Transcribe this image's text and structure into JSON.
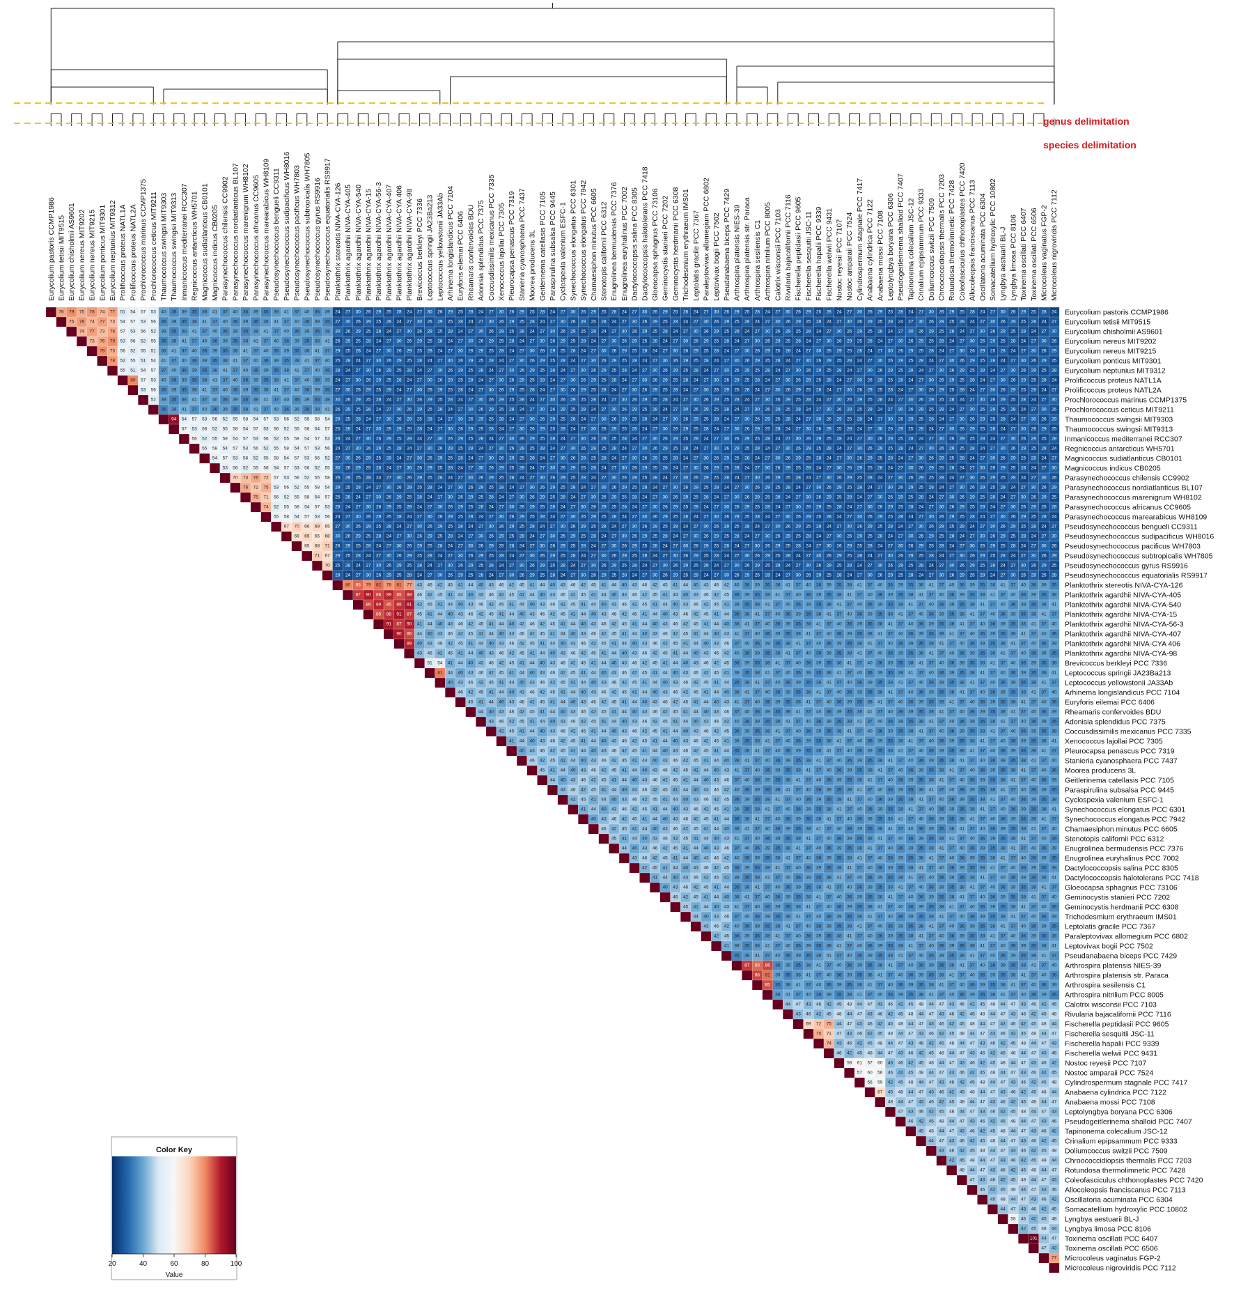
{
  "chart_data": {
    "type": "heatmap",
    "description_scope": "upper-triangular pairwise similarity matrix with hierarchical clustering dendrogram",
    "legend": {
      "title": "Color Key",
      "xlabel": "Value",
      "ticks": [
        20,
        40,
        60,
        80,
        100
      ],
      "range": [
        20,
        100
      ],
      "palette": [
        "#08306b",
        "#2166ac",
        "#6aa6d1",
        "#dbeaf5",
        "#f7f7f7",
        "#fcd4bd",
        "#ef8a62",
        "#b2182b",
        "#67001f"
      ]
    },
    "delimitations": [
      {
        "label": "genus delimitation",
        "color": "#f5b800"
      },
      {
        "label": "species delimitation",
        "color": "#f5b800"
      }
    ],
    "taxa": [
      "Eurycolium pastoris CCMP1986",
      "Eurycolium tetisii MIT9515",
      "Eurycolium chisholmii AS9601",
      "Eurycolium nereus MIT9202",
      "Eurycolium nereus MIT9215",
      "Eurycolium ponticus MIT9301",
      "Eurycolium neptunius MIT9312",
      "Prolificoccus proteus NATL1A",
      "Prolificoccus proteus NATL2A",
      "Prochlorococcus marinus CCMP1375",
      "Prochlorococcus ceticus MIT9211",
      "Thaumococcus swingsii MIT9303",
      "Thaumococcus swingsii MIT9313",
      "Inmanicoccus mediterranei RCC307",
      "Regnicoccus antarcticus WH5701",
      "Magnicoccus sudiatlanticus CB0101",
      "Magnicoccus indicus CB0205",
      "Parasynechococcus chilensis CC9902",
      "Parasynechococcus nordiatlanticus BL107",
      "Parasynechococcus marenigrum WH8102",
      "Parasynechococcus africanus CC9605",
      "Parasynechococcus marearabicus WH8109",
      "Pseudosynechococcus bengueli CC9311",
      "Pseudosynechococcus sudipacificus WH8016",
      "Pseudosynechococcus pacificus WH7803",
      "Pseudosynechococcus subtropicalis WH7805",
      "Pseudosynechococcus gyrus RS9916",
      "Pseudosynechococcus equatorialis RS9917",
      "Planktothrix stereotis NIVA-CYA-126",
      "Planktothrix agardhii NIVA-CYA-405",
      "Planktothrix agardhii NIVA-CYA-540",
      "Planktothrix agardhii NIVA-CYA-15",
      "Planktothrix agardhii NIVA-CYA-56-3",
      "Planktothrix agardhii NIVA-CYA-407",
      "Planktothrix agardhii NIVA-CYA 406",
      "Planktothrix agardhii NIVA-CYA-98",
      "Brevicoccus berkleyi PCC 7336",
      "Leptococcus springii JA23Ba213",
      "Leptococcus yellowstonii JA33Ab",
      "Arhinema longislandicus PCC 7104",
      "Euryforis eilemai PCC 6406",
      "Rheamaris confervoides BDU",
      "Adonisia splendidus PCC 7375",
      "Coccusdissimilis mexicanus PCC 7335",
      "Xenococcus lajollai PCC 7305",
      "Pleurocapsa penascus PCC 7319",
      "Stanieria cyanosphaera PCC 7437",
      "Moorea producens 3L",
      "Geitlerinema catellasis PCC 7105",
      "Paraspirulina subsalsa PCC 9445",
      "Cyclospexia valenium ESFC-1",
      "Synechococcus elongatus PCC 6301",
      "Synechococcus elongatus PCC 7942",
      "Chamaesiphon minutus PCC 6605",
      "Stenotopis californii PCC 6312",
      "Enugrolinea bermudensis PCC 7376",
      "Enugrolinea euryhalinus PCC 7002",
      "Dactylococcopsis salina PCC 8305",
      "Dactylococcopsis halotolerans PCC 7418",
      "Gloeocapsa sphagnus PCC 73106",
      "Geminocystis stanieri PCC 7202",
      "Geminocystis herdmanii PCC 6308",
      "Trichodesmium erythraeum IMS01",
      "Leptolatis gracile PCC 7367",
      "Paraleptovivax allomegium PCC 6802",
      "Leptovivax bogii PCC 7502",
      "Pseudanabaena biceps PCC 7429",
      "Arthrospira platensis NIES-39",
      "Arthrospira platensis str. Paraca",
      "Arthrospira sesilensis C1",
      "Arthrospira nitrilium PCC 8005",
      "Calotrix wisconsii PCC 7103",
      "Rivularia bajacalifornii PCC 7116",
      "Fischerella peptidasii PCC 9605",
      "Fischerella sesquitii JSC-11",
      "Fischerella hapalii PCC 9339",
      "Fischerella welwii PCC 9431",
      "Nostoc reyesii PCC 7107",
      "Nostoc amparaii PCC 7524",
      "Cylindrospermum stagnale PCC 7417",
      "Anabaena cylindrica PCC 7122",
      "Anabaena mossi PCC 7108",
      "Leptolyngbya boryana PCC 6306",
      "Pseudogeitlerinema shalloid PCC 7407",
      "Tapinonema colecalium JSC-12",
      "Crinalium epipsammum PCC 9333",
      "Doliumcoccus switzii PCC 7509",
      "Chroococcidiopsis thermalis PCC 7203",
      "Rotundosa thermolimnetic PCC 7428",
      "Coleofasciculus chthonoplastes PCC 7420",
      "Allocoleopsis franciscanus PCC 7113",
      "Oscillatoria acuminata PCC 6304",
      "Somacatellium hydroxylic PCC 10802",
      "Lyngbya aestuarii BL-J",
      "Lyngbya limosa PCC 8106",
      "Toxinema oscillati PCC 6407",
      "Toxinema oscillati PCC 6506",
      "Microcoleus vaginatus FGP-2",
      "Microcoleus nigroviridis PCC 7112"
    ],
    "value_model": {
      "default_between_clusters": 27,
      "default_within_group": 38,
      "clusters": [
        {
          "rows": [
            0,
            6
          ],
          "within": 76
        },
        {
          "rows": [
            7,
            8
          ],
          "within": 80
        },
        {
          "rows": [
            0,
            10
          ],
          "within": 54
        },
        {
          "rows": [
            11,
            12
          ],
          "within": 91
        },
        {
          "rows": [
            11,
            27
          ],
          "within": 55
        },
        {
          "rows": [
            17,
            21
          ],
          "within": 73
        },
        {
          "rows": [
            22,
            27
          ],
          "within": 68
        },
        {
          "rows": [
            28,
            35
          ],
          "within": 80
        },
        {
          "rows": [
            29,
            35
          ],
          "within": 88
        },
        {
          "rows": [
            36,
            38
          ],
          "within": 52
        },
        {
          "rows": [
            37,
            38
          ],
          "within": 83
        },
        {
          "rows": [
            28,
            66
          ],
          "within": 43
        },
        {
          "rows": [
            67,
            70
          ],
          "within": 84
        },
        {
          "rows": [
            71,
            98
          ],
          "within": 45
        },
        {
          "rows": [
            73,
            76
          ],
          "within": 72
        },
        {
          "rows": [
            77,
            81
          ],
          "within": 58
        },
        {
          "rows": [
            80,
            81
          ],
          "within": 70
        },
        {
          "rows": [
            93,
            94
          ],
          "within": 60
        },
        {
          "rows": [
            95,
            96
          ],
          "within": 98
        },
        {
          "rows": [
            97,
            98
          ],
          "within": 76
        }
      ]
    }
  }
}
